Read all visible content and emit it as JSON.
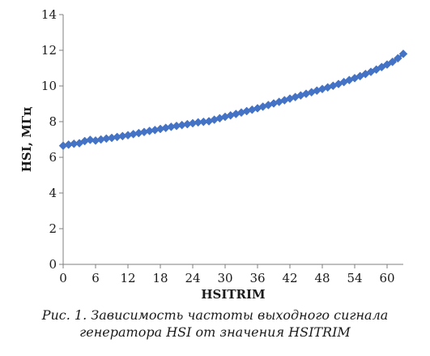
{
  "chart_data": {
    "type": "line",
    "title": "",
    "xlabel": "HSITRIM",
    "ylabel": "HSI, МГц",
    "xlim": [
      0,
      63
    ],
    "ylim": [
      0,
      14
    ],
    "x_ticks": [
      0,
      6,
      12,
      18,
      24,
      30,
      36,
      42,
      48,
      54,
      60
    ],
    "y_ticks": [
      0,
      2,
      4,
      6,
      8,
      10,
      12,
      14
    ],
    "grid": false,
    "legend": "none",
    "marker": "diamond",
    "color": "#4472C4",
    "series": [
      {
        "x": [
          0,
          1,
          2,
          3,
          4,
          5,
          6,
          7,
          8,
          9,
          10,
          11,
          12,
          13,
          14,
          15,
          16,
          17,
          18,
          19,
          20,
          21,
          22,
          23,
          24,
          25,
          26,
          27,
          28,
          29,
          30,
          31,
          32,
          33,
          34,
          35,
          36,
          37,
          38,
          39,
          40,
          41,
          42,
          43,
          44,
          45,
          46,
          47,
          48,
          49,
          50,
          51,
          52,
          53,
          54,
          55,
          56,
          57,
          58,
          59,
          60,
          61,
          62,
          63
        ],
        "values": [
          6.65,
          6.71,
          6.76,
          6.79,
          6.91,
          6.98,
          6.94,
          7.0,
          7.05,
          7.09,
          7.14,
          7.19,
          7.24,
          7.3,
          7.36,
          7.42,
          7.48,
          7.53,
          7.59,
          7.65,
          7.71,
          7.76,
          7.81,
          7.86,
          7.91,
          7.96,
          7.99,
          8.02,
          8.11,
          8.19,
          8.27,
          8.35,
          8.43,
          8.51,
          8.59,
          8.67,
          8.75,
          8.84,
          8.93,
          9.02,
          9.11,
          9.2,
          9.29,
          9.38,
          9.47,
          9.56,
          9.65,
          9.74,
          9.83,
          9.92,
          10.01,
          10.11,
          10.22,
          10.33,
          10.44,
          10.55,
          10.67,
          10.79,
          10.92,
          11.06,
          11.2,
          11.35,
          11.55,
          11.8
        ]
      }
    ]
  },
  "caption": {
    "line1": "Рис. 1. Зависимость частоты выходного сигнала",
    "line2": "генератора HSI от значения HSITRIM"
  }
}
